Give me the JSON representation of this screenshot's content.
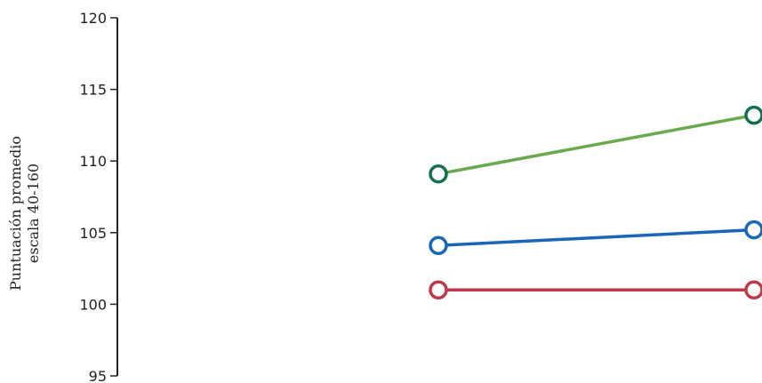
{
  "chart_data": {
    "type": "line",
    "title": "",
    "ylabel_lines": [
      "Puntuación promedio",
      "escala 40-160"
    ],
    "xlabel": "",
    "ylim": [
      95,
      120
    ],
    "yticks": [
      95,
      100,
      105,
      110,
      115,
      120
    ],
    "x": [
      1,
      2
    ],
    "grid": false,
    "series": [
      {
        "values": [
          109.1,
          113.2
        ],
        "color": "#6aaa4f",
        "marker_color": "#16704f"
      },
      {
        "values": [
          104.1,
          105.2
        ],
        "color": "#1a66b8",
        "marker_color": "#1a66b8"
      },
      {
        "values": [
          101.0,
          101.0
        ],
        "color": "#c0394b",
        "marker_color": "#c0394b"
      }
    ]
  }
}
